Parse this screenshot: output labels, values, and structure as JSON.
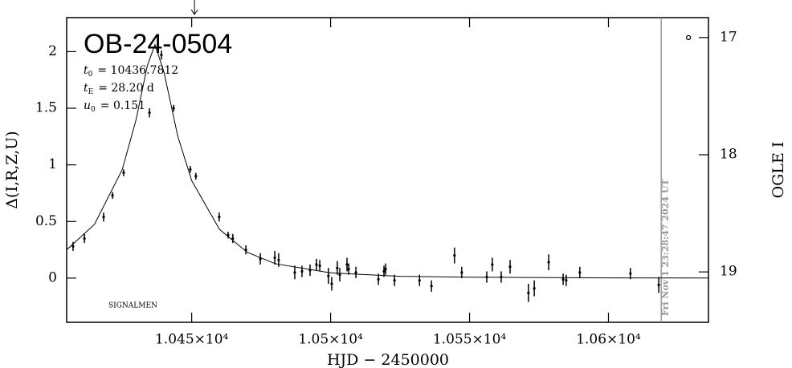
{
  "chart_data": {
    "type": "scatter",
    "title": "OB-24-0504",
    "parameters": [
      {
        "symbol": "t",
        "sub": "0",
        "text": "= 10436.7812"
      },
      {
        "symbol": "t",
        "sub": "E",
        "text": "= 28.20 d"
      },
      {
        "symbol": "u",
        "sub": "0",
        "text": "= 0.151"
      }
    ],
    "x_label": "HJD  −  2450000",
    "y_label": "Δ(I,R,Z,U)",
    "y2_label": "OGLE I",
    "credit": "SIGNALMEN",
    "timestamp": "Fri Nov  1 23:28:47 2024 UT",
    "timestamp_x": 10619,
    "arrow_x": 10451,
    "xlim": [
      10405,
      10636
    ],
    "ylim": [
      -0.39,
      2.3
    ],
    "y2lim": [
      19.43,
      16.83
    ],
    "xticks": [
      {
        "value": 10450,
        "label": "1.045×10⁴"
      },
      {
        "value": 10500,
        "label": "1.05×10⁴"
      },
      {
        "value": 10550,
        "label": "1.055×10⁴"
      },
      {
        "value": 10600,
        "label": "1.06×10⁴"
      }
    ],
    "yticks": [
      0,
      0.5,
      1,
      1.5,
      2
    ],
    "y2ticks": [
      17,
      18,
      19
    ],
    "color": "#000000",
    "timestamp_color": "#999999",
    "points": {
      "x": [
        10407.3,
        10411.4,
        10418.3,
        10421.5,
        10425.5,
        10434.8,
        10439.1,
        10443.5,
        10449.5,
        10451.5,
        10459.9,
        10463.1,
        10464.8,
        10469.5,
        10474.7,
        10479.9,
        10481.3,
        10487.1,
        10489.7,
        10492.6,
        10494.9,
        10496.1,
        10499.2,
        10500.4,
        10502.4,
        10503.3,
        10505.9,
        10506.5,
        10509.1,
        10517.2,
        10519.2,
        10519.8,
        10523.0,
        10532.0,
        10536.3,
        10544.6,
        10547.2,
        10556.2,
        10558.2,
        10561.4,
        10564.6,
        10571.2,
        10573.3,
        10578.5,
        10583.7,
        10584.8,
        10589.7,
        10607.9,
        10618.1
      ],
      "values": [
        0.28,
        0.35,
        0.54,
        0.73,
        0.93,
        1.46,
        1.97,
        1.5,
        0.96,
        0.9,
        0.54,
        0.38,
        0.35,
        0.25,
        0.17,
        0.18,
        0.16,
        0.05,
        0.06,
        0.07,
        0.12,
        0.11,
        0.02,
        -0.05,
        0.09,
        0.03,
        0.12,
        0.08,
        0.05,
        -0.01,
        0.06,
        0.08,
        -0.02,
        -0.02,
        -0.07,
        0.2,
        0.05,
        0.01,
        0.12,
        0.01,
        0.1,
        -0.13,
        -0.09,
        0.14,
        -0.01,
        -0.02,
        0.05,
        0.04,
        -0.06
      ],
      "errors": [
        0.04,
        0.04,
        0.04,
        0.03,
        0.03,
        0.04,
        0.04,
        0.03,
        0.03,
        0.03,
        0.04,
        0.03,
        0.04,
        0.04,
        0.05,
        0.06,
        0.06,
        0.06,
        0.05,
        0.05,
        0.05,
        0.05,
        0.07,
        0.06,
        0.06,
        0.06,
        0.06,
        0.05,
        0.05,
        0.05,
        0.05,
        0.05,
        0.05,
        0.05,
        0.05,
        0.07,
        0.05,
        0.05,
        0.06,
        0.05,
        0.06,
        0.08,
        0.07,
        0.07,
        0.05,
        0.05,
        0.05,
        0.05,
        0.07
      ]
    },
    "model": {
      "x": [
        10405,
        10415,
        10425,
        10430,
        10434,
        10436.78,
        10440,
        10445,
        10450,
        10460,
        10470,
        10480,
        10500,
        10525,
        10550,
        10600,
        10636
      ],
      "values": [
        0.25,
        0.475,
        0.958,
        1.401,
        1.873,
        2.062,
        1.821,
        1.252,
        0.861,
        0.431,
        0.228,
        0.128,
        0.046,
        0.016,
        0.008,
        0.002,
        0.001
      ]
    },
    "outliers": {
      "x": [
        10628.8
      ],
      "values": [
        17.0
      ],
      "axis": "y2"
    }
  }
}
